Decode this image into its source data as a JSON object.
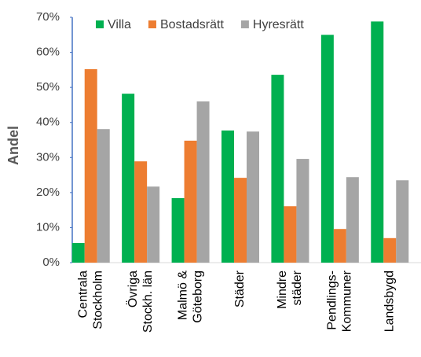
{
  "chart_data": {
    "type": "bar",
    "y_label": "Andel",
    "categories": [
      [
        "Centrala",
        "Stockholm"
      ],
      [
        "Övriga",
        "Stockh. län"
      ],
      [
        "Malmö &",
        "Göteborg"
      ],
      [
        "Städer"
      ],
      [
        "Mindre",
        "städer"
      ],
      [
        "Pendlings-",
        "Kommuner"
      ],
      [
        "Landsbygd"
      ]
    ],
    "series": [
      {
        "name": "Villa",
        "color": "#00b050",
        "values": [
          5.6,
          48.2,
          18.4,
          37.7,
          53.6,
          65,
          68.8
        ]
      },
      {
        "name": "Bostadsrätt",
        "color": "#ed7d31",
        "values": [
          55.2,
          28.9,
          34.8,
          24.2,
          16.1,
          9.6,
          7
        ]
      },
      {
        "name": "Hyresrätt",
        "color": "#a5a5a5",
        "values": [
          38.1,
          21.7,
          46,
          37.4,
          29.6,
          24.4,
          23.5
        ]
      }
    ],
    "ylim": [
      0,
      70
    ],
    "yticks": [
      {
        "value": 0,
        "label": "0%"
      },
      {
        "value": 10,
        "label": "10%"
      },
      {
        "value": 20,
        "label": "20%"
      },
      {
        "value": 30,
        "label": "30%"
      },
      {
        "value": 40,
        "label": "40%"
      },
      {
        "value": 50,
        "label": "50%"
      },
      {
        "value": 60,
        "label": "60%"
      },
      {
        "value": 70,
        "label": "70%"
      }
    ],
    "legend": "top"
  }
}
